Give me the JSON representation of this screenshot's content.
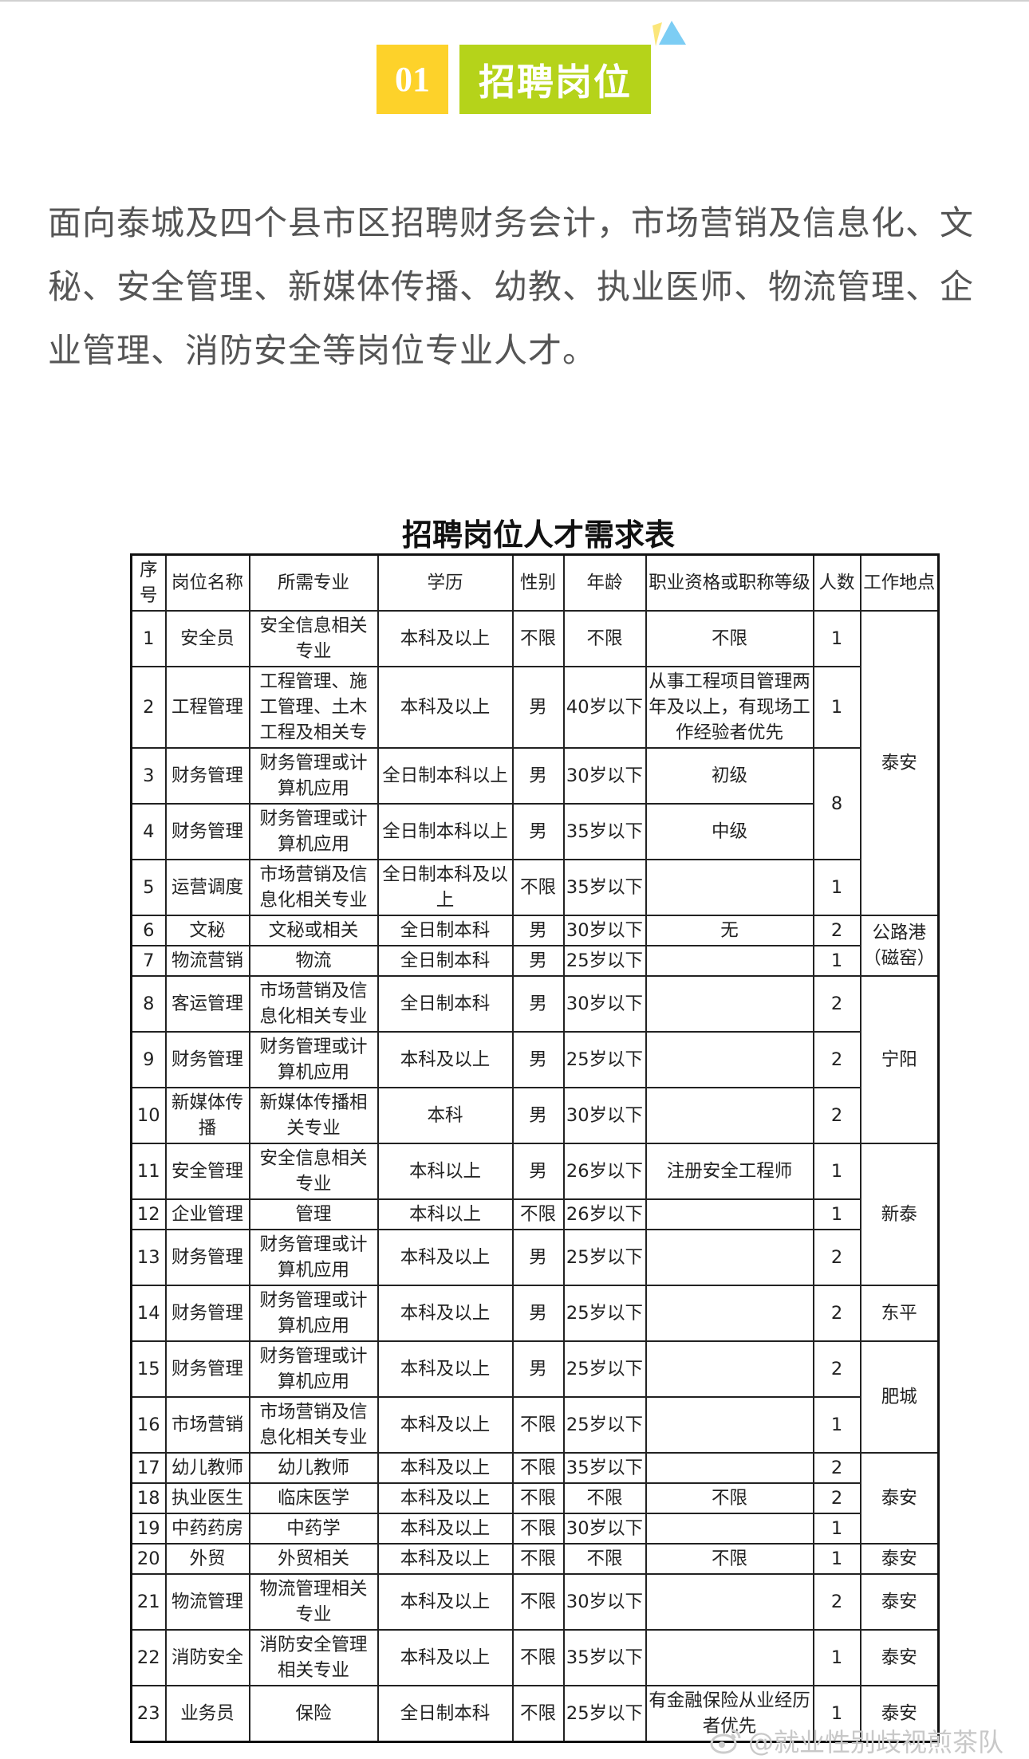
{
  "section": {
    "number": "01",
    "title": "招聘岗位"
  },
  "intro": "面向泰城及四个县市区招聘财务会计，市场营销及信息化、文秘、安全管理、新媒体传播、幼教、执业医师、物流管理、企业管理、消防安全等岗位专业人才。",
  "table": {
    "title": "招聘岗位人才需求表",
    "headers": [
      "序号",
      "岗位名称",
      "所需专业",
      "学历",
      "性别",
      "年龄",
      "职业资格或职称等级",
      "人数",
      "工作地点"
    ],
    "rows": [
      {
        "no": "1",
        "position": "安全员",
        "major": "安全信息相关专业",
        "education": "本科及以上",
        "gender": "不限",
        "age": "不限",
        "qualification": "不限",
        "count": "1",
        "location": "泰安"
      },
      {
        "no": "2",
        "position": "工程管理",
        "major": "工程管理、施工管理、土木工程及相关专",
        "education": "本科及以上",
        "gender": "男",
        "age": "40岁以下",
        "qualification": "从事工程项目管理两年及以上，有现场工作经验者优先",
        "count": "1"
      },
      {
        "no": "3",
        "position": "财务管理",
        "major": "财务管理或计算机应用",
        "education": "全日制本科以上",
        "gender": "男",
        "age": "30岁以下",
        "qualification": "初级",
        "count": "8"
      },
      {
        "no": "4",
        "position": "财务管理",
        "major": "财务管理或计算机应用",
        "education": "全日制本科以上",
        "gender": "男",
        "age": "35岁以下",
        "qualification": "中级"
      },
      {
        "no": "5",
        "position": "运营调度",
        "major": "市场营销及信息化相关专业",
        "education": "全日制本科及以上",
        "gender": "不限",
        "age": "35岁以下",
        "qualification": "",
        "count": "1"
      },
      {
        "no": "6",
        "position": "文秘",
        "major": "文秘或相关",
        "education": "全日制本科",
        "gender": "男",
        "age": "30岁以下",
        "qualification": "无",
        "count": "2",
        "location": "公路港（磁窑）"
      },
      {
        "no": "7",
        "position": "物流营销",
        "major": "物流",
        "education": "全日制本科",
        "gender": "男",
        "age": "25岁以下",
        "qualification": "",
        "count": "1"
      },
      {
        "no": "8",
        "position": "客运管理",
        "major": "市场营销及信息化相关专业",
        "education": "全日制本科",
        "gender": "男",
        "age": "30岁以下",
        "qualification": "",
        "count": "2",
        "location": "宁阳"
      },
      {
        "no": "9",
        "position": "财务管理",
        "major": "财务管理或计算机应用",
        "education": "本科及以上",
        "gender": "男",
        "age": "25岁以下",
        "qualification": "",
        "count": "2"
      },
      {
        "no": "10",
        "position": "新媒体传播",
        "major": "新媒体传播相关专业",
        "education": "本科",
        "gender": "男",
        "age": "30岁以下",
        "qualification": "",
        "count": "2"
      },
      {
        "no": "11",
        "position": "安全管理",
        "major": "安全信息相关专业",
        "education": "本科以上",
        "gender": "男",
        "age": "26岁以下",
        "qualification": "注册安全工程师",
        "count": "1",
        "location": "新泰"
      },
      {
        "no": "12",
        "position": "企业管理",
        "major": "管理",
        "education": "本科以上",
        "gender": "不限",
        "age": "26岁以下",
        "qualification": "",
        "count": "1"
      },
      {
        "no": "13",
        "position": "财务管理",
        "major": "财务管理或计算机应用",
        "education": "本科及以上",
        "gender": "男",
        "age": "25岁以下",
        "qualification": "",
        "count": "2"
      },
      {
        "no": "14",
        "position": "财务管理",
        "major": "财务管理或计算机应用",
        "education": "本科及以上",
        "gender": "男",
        "age": "25岁以下",
        "qualification": "",
        "count": "2",
        "location": "东平"
      },
      {
        "no": "15",
        "position": "财务管理",
        "major": "财务管理或计算机应用",
        "education": "本科及以上",
        "gender": "男",
        "age": "25岁以下",
        "qualification": "",
        "count": "2",
        "location": "肥城"
      },
      {
        "no": "16",
        "position": "市场营销",
        "major": "市场营销及信息化相关专业",
        "education": "本科及以上",
        "gender": "不限",
        "age": "25岁以下",
        "qualification": "",
        "count": "1"
      },
      {
        "no": "17",
        "position": "幼儿教师",
        "major": "幼儿教师",
        "education": "本科及以上",
        "gender": "不限",
        "age": "35岁以下",
        "qualification": "",
        "count": "2",
        "location": "泰安"
      },
      {
        "no": "18",
        "position": "执业医生",
        "major": "临床医学",
        "education": "本科及以上",
        "gender": "不限",
        "age": "不限",
        "qualification": "不限",
        "count": "2"
      },
      {
        "no": "19",
        "position": "中药药房",
        "major": "中药学",
        "education": "本科及以上",
        "gender": "不限",
        "age": "30岁以下",
        "qualification": "",
        "count": "1"
      },
      {
        "no": "20",
        "position": "外贸",
        "major": "外贸相关",
        "education": "本科及以上",
        "gender": "不限",
        "age": "不限",
        "qualification": "不限",
        "count": "1",
        "location": "泰安"
      },
      {
        "no": "21",
        "position": "物流管理",
        "major": "物流管理相关专业",
        "education": "本科及以上",
        "gender": "不限",
        "age": "30岁以下",
        "qualification": "",
        "count": "2",
        "location": "泰安"
      },
      {
        "no": "22",
        "position": "消防安全",
        "major": "消防安全管理相关专业",
        "education": "本科及以上",
        "gender": "不限",
        "age": "35岁以下",
        "qualification": "",
        "count": "1",
        "location": "泰安"
      },
      {
        "no": "23",
        "position": "业务员",
        "major": "保险",
        "education": "全日制本科",
        "gender": "不限",
        "age": "25岁以下",
        "qualification": "有金融保险从业经历者优先",
        "count": "1",
        "location": "泰安"
      }
    ]
  },
  "watermark": "@就业性别歧视煎茶队",
  "colors": {
    "number_badge": "#fdd22a",
    "title_badge": "#b5d31a",
    "deco_yellow": "#fbe67a",
    "deco_blue": "#7ccdf4"
  }
}
